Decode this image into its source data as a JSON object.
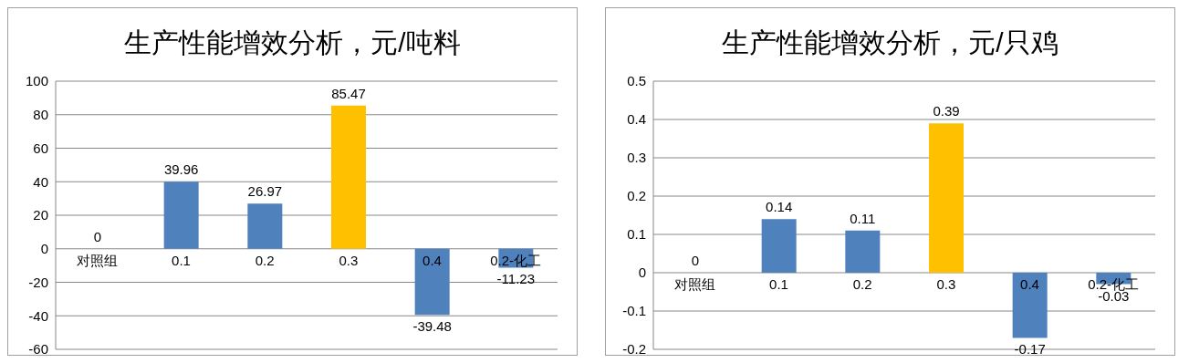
{
  "chart_data": [
    {
      "type": "bar",
      "title": "生产性能增效分析，元/吨料",
      "categories": [
        "对照组",
        "0.1",
        "0.2",
        "0.3",
        "0.4",
        "0.2-化工"
      ],
      "values": [
        0,
        39.96,
        26.97,
        85.47,
        -39.48,
        -11.23
      ],
      "colors": [
        "#4f81bd",
        "#4f81bd",
        "#4f81bd",
        "#ffc000",
        "#4f81bd",
        "#4f81bd"
      ],
      "ylim": [
        -60,
        100
      ],
      "yticks": [
        -60,
        -40,
        -20,
        0,
        20,
        40,
        60,
        80,
        100
      ],
      "grid": "y",
      "data_labels": true
    },
    {
      "type": "bar",
      "title": "生产性能增效分析，元/只鸡",
      "categories": [
        "对照组",
        "0.1",
        "0.2",
        "0.3",
        "0.4",
        "0.2-化工"
      ],
      "values": [
        0,
        0.14,
        0.11,
        0.39,
        -0.17,
        -0.03
      ],
      "colors": [
        "#4f81bd",
        "#4f81bd",
        "#4f81bd",
        "#ffc000",
        "#4f81bd",
        "#4f81bd"
      ],
      "ylim": [
        -0.2,
        0.5
      ],
      "yticks": [
        -0.2,
        -0.1,
        0,
        0.1,
        0.2,
        0.3,
        0.4,
        0.5
      ],
      "grid": "y",
      "data_labels": true
    }
  ]
}
